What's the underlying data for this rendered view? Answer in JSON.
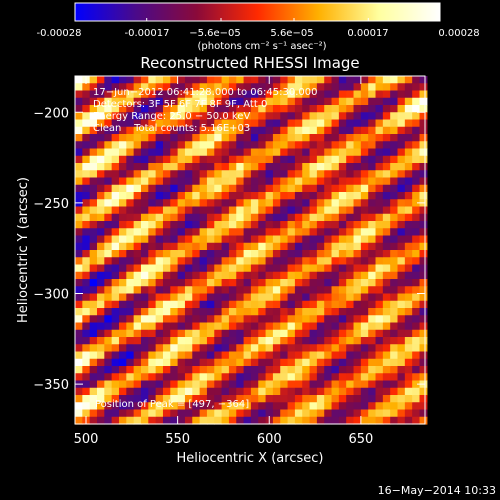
{
  "colors": {
    "background": "#000000",
    "foreground": "#ffffff"
  },
  "colorbar": {
    "ticks": [
      "-0.00028",
      "-0.00017",
      "−5.6e−05",
      "5.6e−05",
      "0.00017",
      "0.00028"
    ],
    "tick_values": [
      -0.00028,
      -0.00017,
      -5.6e-05,
      5.6e-05,
      0.00017,
      0.00028
    ],
    "min": -0.00028,
    "max": 0.00028,
    "units": "(photons cm⁻² s⁻¹ asec⁻²)",
    "colormap": [
      "#0000ff",
      "#4a0a8a",
      "#8a0a3a",
      "#ff2a00",
      "#ffb000",
      "#ffffa0",
      "#ffffff"
    ]
  },
  "chart_data": {
    "type": "heatmap",
    "title": "Reconstructed RHESSI Image",
    "xlabel": "Heliocentric X (arcsec)",
    "ylabel": "Heliocentric Y (arcsec)",
    "xlim": [
      494,
      685
    ],
    "ylim": [
      -372,
      -180
    ],
    "xticks": [
      500,
      550,
      600,
      650
    ],
    "yticks": [
      -200,
      -250,
      -300,
      -350
    ],
    "pattern": {
      "description_values": "diagonal striping of alternating positive/negative flux",
      "stripe_wavelength_arcsec": 26,
      "stripe_direction": "down-right",
      "cell_size_arcsec": 4
    },
    "annotations": [
      "17−Jun−2012 06:41:28.000 to 06:45:30.000",
      "Detectors: 3F 5F 6F 7F 8F 9F, Att 0",
      "Energy Range: 25.0 − 50.0 keV",
      "Clean    Total counts: 5.16E+03"
    ],
    "peak_label": "Position of Peak = [497, −364]"
  },
  "footer": {
    "timestamp": "16−May−2014 10:33"
  }
}
